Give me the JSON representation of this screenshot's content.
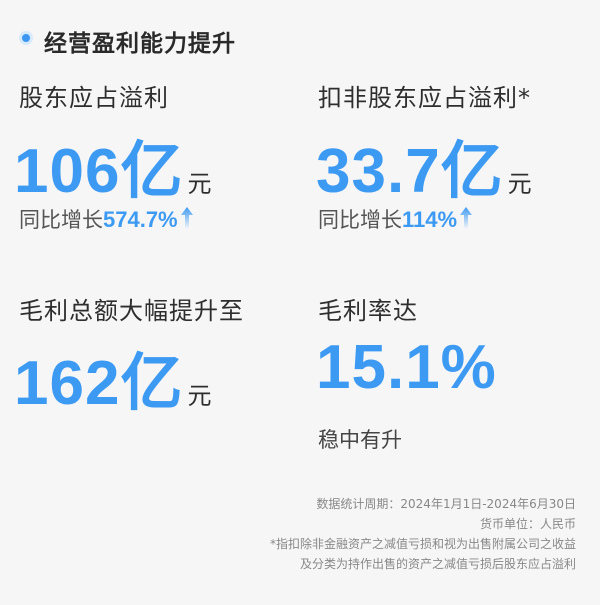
{
  "section": {
    "title": "经营盈利能力提升",
    "accent": "#3d9af3"
  },
  "metrics": [
    {
      "label": "股东应占溢利",
      "value": "106亿",
      "unit": "元",
      "growth_label": "同比增长",
      "growth_value": "574.7%",
      "growth_icon": "arrow-up-icon"
    },
    {
      "label": "扣非股东应占溢利*",
      "value": "33.7亿",
      "unit": "元",
      "growth_label": "同比增长",
      "growth_value": "114%",
      "growth_icon": "arrow-up-icon"
    },
    {
      "label": "毛利总额大幅提升至",
      "value": "162亿",
      "unit": "元"
    },
    {
      "label": "毛利率达",
      "value": "15.1%",
      "note": "稳中有升"
    }
  ],
  "footnotes": {
    "period": "数据统计周期：2024年1月1日-2024年6月30日",
    "currency": "货币单位：人民币",
    "note_line1": "*指扣除非金融资产之减值亏损和视为出售附属公司之收益",
    "note_line2": "及分类为持作出售的资产之减值亏损后股东应占溢利"
  }
}
